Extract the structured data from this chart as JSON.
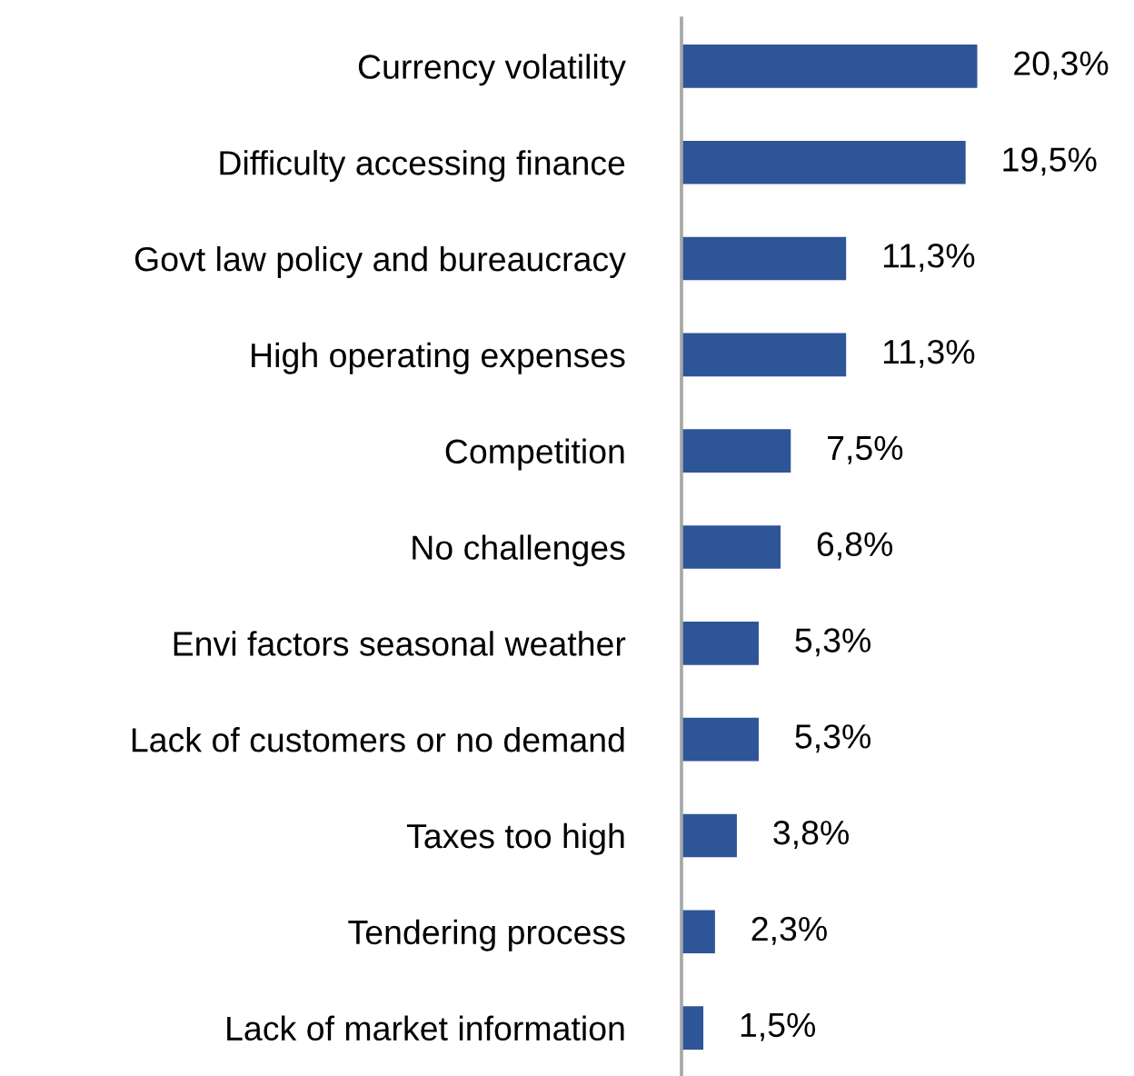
{
  "chart_data": {
    "type": "bar",
    "orientation": "horizontal",
    "categories": [
      "Currency volatility",
      "Difficulty accessing finance",
      "Govt law policy and bureaucracy",
      "High operating expenses",
      "Competition",
      "No challenges",
      "Envi factors seasonal weather",
      "Lack of customers or no demand",
      "Taxes too high",
      "Tendering process",
      "Lack of market information"
    ],
    "values": [
      20.3,
      19.5,
      11.3,
      11.3,
      7.5,
      6.8,
      5.3,
      5.3,
      3.8,
      2.3,
      1.5
    ],
    "value_labels": [
      "20,3%",
      "19,5%",
      "11,3%",
      "11,3%",
      "7,5%",
      "6,8%",
      "5,3%",
      "5,3%",
      "3,8%",
      "2,3%",
      "1,5%"
    ],
    "color": "#2e5597",
    "grid": false,
    "legend": false,
    "tick_labels": "y"
  }
}
